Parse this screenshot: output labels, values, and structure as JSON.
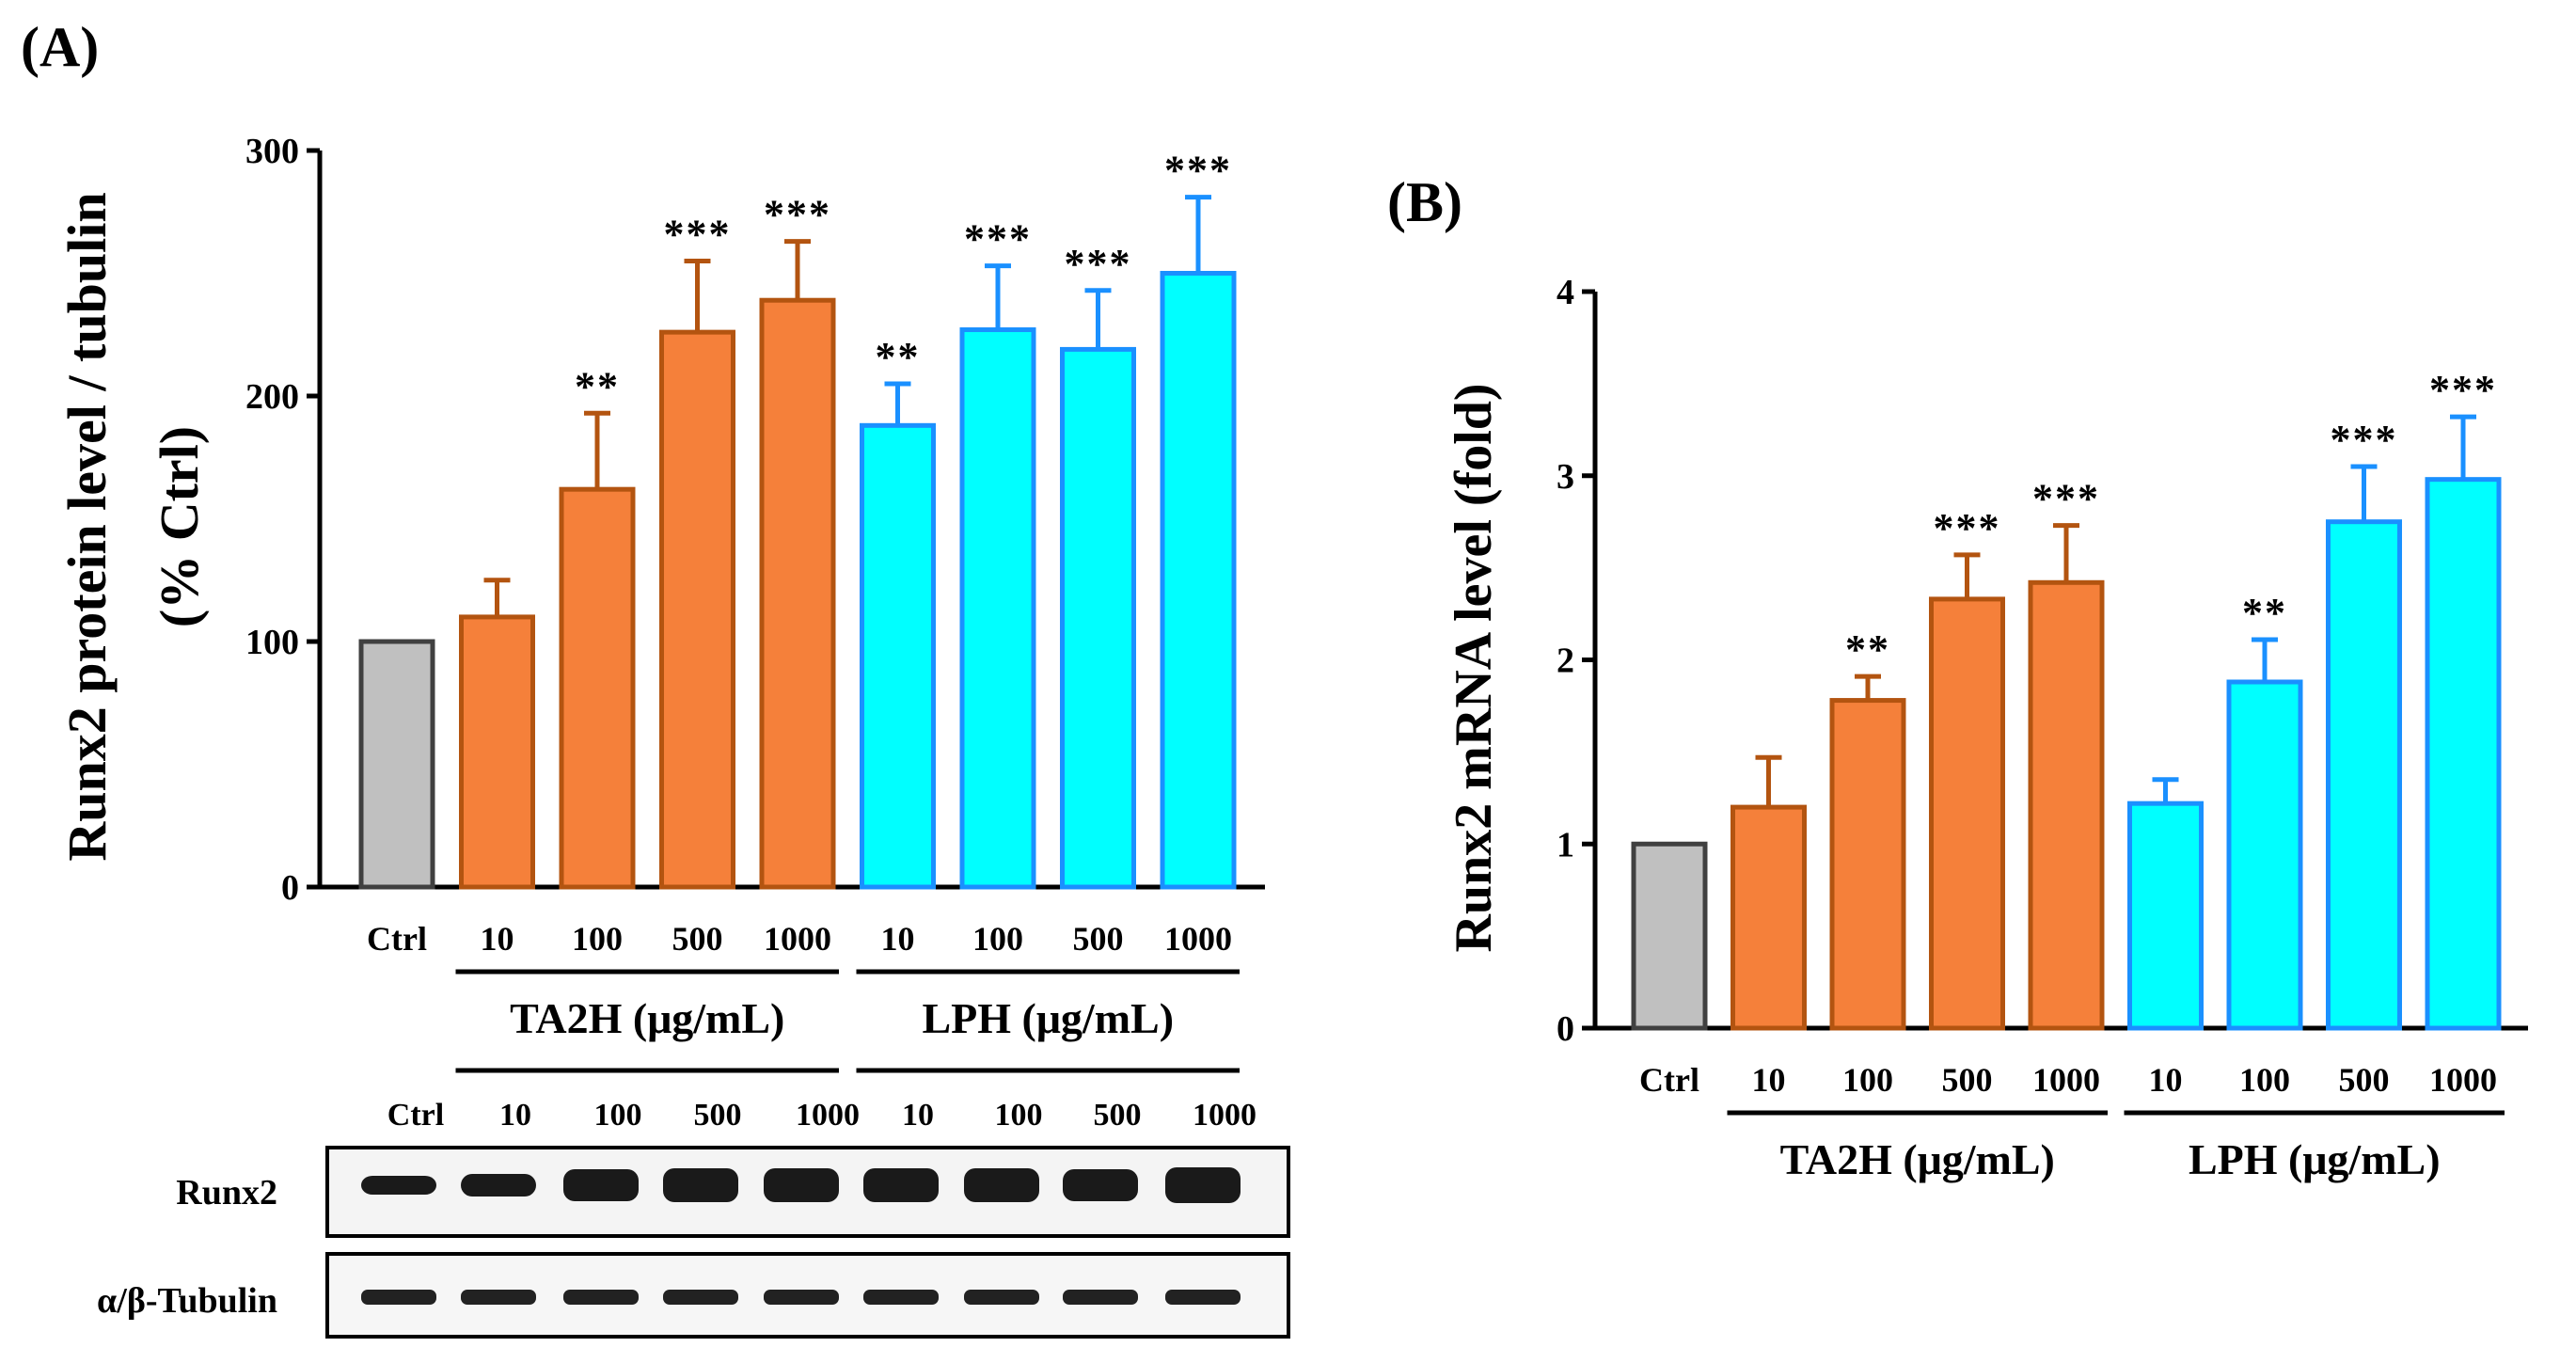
{
  "panel_a": {
    "label": "(A)",
    "blot": {
      "lane_labels": [
        "Ctrl",
        "10",
        "100",
        "500",
        "1000",
        "10",
        "100",
        "500",
        "1000"
      ],
      "row_labels": [
        "Runx2",
        "α/β-Tubulin"
      ]
    }
  },
  "panel_b": {
    "label": "(B)"
  },
  "colors": {
    "ctrl_fill": "#c0c0c0",
    "ctrl_stroke": "#404040",
    "ta2h_fill": "#f5803a",
    "ta2h_stroke": "#b35410",
    "lph_fill": "#00ffff",
    "lph_stroke": "#1a90ff"
  },
  "chart_data": [
    {
      "id": "A",
      "type": "bar",
      "title": "",
      "ylabel": [
        "Runx2 protein level / tubulin",
        "(% Ctrl)"
      ],
      "xlabel": "",
      "ylim": [
        0,
        300
      ],
      "yticks": [
        0,
        100,
        200,
        300
      ],
      "categories": [
        "Ctrl",
        "10",
        "100",
        "500",
        "1000",
        "10",
        "100",
        "500",
        "1000"
      ],
      "groups": [
        "ctrl",
        "ta2h",
        "ta2h",
        "ta2h",
        "ta2h",
        "lph",
        "lph",
        "lph",
        "lph"
      ],
      "group_labels": [
        "TA2H (μg/mL)",
        "LPH (μg/mL)"
      ],
      "values": [
        100,
        110,
        162,
        226,
        239,
        188,
        227,
        219,
        250
      ],
      "errors": [
        0,
        15,
        31,
        29,
        24,
        17,
        26,
        24,
        31
      ],
      "significance": [
        "",
        "",
        "**",
        "***",
        "***",
        "**",
        "***",
        "***",
        "***"
      ]
    },
    {
      "id": "B",
      "type": "bar",
      "title": "",
      "ylabel": [
        "Runx2 mRNA level (fold)"
      ],
      "xlabel": "",
      "ylim": [
        0,
        4
      ],
      "yticks": [
        0,
        1,
        2,
        3,
        4
      ],
      "categories": [
        "Ctrl",
        "10",
        "100",
        "500",
        "1000",
        "10",
        "100",
        "500",
        "1000"
      ],
      "groups": [
        "ctrl",
        "ta2h",
        "ta2h",
        "ta2h",
        "ta2h",
        "lph",
        "lph",
        "lph",
        "lph"
      ],
      "group_labels": [
        "TA2H (μg/mL)",
        "LPH (μg/mL)"
      ],
      "values": [
        1.0,
        1.2,
        1.78,
        2.33,
        2.42,
        1.22,
        1.88,
        2.75,
        2.98
      ],
      "errors": [
        0,
        0.27,
        0.13,
        0.24,
        0.31,
        0.13,
        0.23,
        0.3,
        0.34
      ],
      "significance": [
        "",
        "",
        "**",
        "***",
        "***",
        "",
        "**",
        "***",
        "***"
      ]
    }
  ]
}
